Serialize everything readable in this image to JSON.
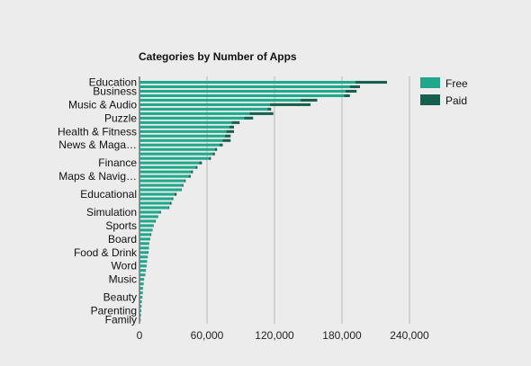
{
  "chart_data": {
    "type": "bar",
    "orientation": "horizontal",
    "stacked": true,
    "title": "Categories by Number of Apps",
    "xlabel": "",
    "ylabel": "",
    "xlim": [
      0,
      240000
    ],
    "x_ticks": [
      0,
      60000,
      120000,
      180000,
      240000
    ],
    "x_tick_labels": [
      "0",
      "60,000",
      "120,000",
      "180,000",
      "240,000"
    ],
    "grid": true,
    "legend_position": "right",
    "colors": {
      "free": "#1fa98a",
      "paid": "#17604f"
    },
    "labeled_categories": [
      "Education",
      "Business",
      "Music & Audio",
      "Puzzle",
      "Health & Fitness",
      "News & Maga…",
      "Finance",
      "Maps & Navig…",
      "Educational",
      "Simulation",
      "Sports",
      "Board",
      "Food & Drink",
      "Word",
      "Music",
      "Beauty",
      "Parenting",
      "Family"
    ],
    "categories": [
      "Education",
      "",
      "Business",
      "",
      "",
      "Music & Audio",
      "",
      "",
      "Puzzle",
      "",
      "",
      "Health & Fitness",
      "",
      "",
      "News & Maga…",
      "",
      "",
      "",
      "Finance",
      "",
      "",
      "Maps & Navig…",
      "",
      "",
      "",
      "Educational",
      "",
      "",
      "",
      "Simulation",
      "",
      "",
      "Sports",
      "",
      "",
      "Board",
      "",
      "",
      "Food & Drink",
      "",
      "",
      "Word",
      "",
      "",
      "Music",
      "",
      "",
      "",
      "Beauty",
      "",
      "",
      "Parenting",
      "",
      "Family"
    ],
    "series": [
      {
        "name": "Free",
        "values": [
          192000,
          187000,
          183000,
          182000,
          143000,
          116000,
          114000,
          98000,
          93000,
          82000,
          80000,
          77000,
          76000,
          74000,
          71000,
          67000,
          65000,
          62000,
          53000,
          50000,
          46000,
          44000,
          40000,
          38000,
          37000,
          31000,
          29000,
          27000,
          26000,
          18000,
          16000,
          14000,
          12000,
          11000,
          10000,
          9000,
          8000,
          8000,
          7500,
          7000,
          6500,
          6000,
          5500,
          5000,
          4000,
          3500,
          3000,
          2800,
          2500,
          2000,
          1800,
          1500,
          1200,
          1000
        ]
      },
      {
        "name": "Paid",
        "values": [
          28000,
          9000,
          10000,
          5000,
          15000,
          36000,
          3000,
          21000,
          8000,
          7000,
          4000,
          7000,
          5000,
          7000,
          3000,
          2000,
          2000,
          1500,
          2500,
          1500,
          1500,
          1500,
          1000,
          1000,
          500,
          2000,
          1000,
          1500,
          500,
          1000,
          500,
          500,
          500,
          500,
          500,
          500,
          500,
          300,
          500,
          300,
          200,
          200,
          200,
          200,
          100,
          200,
          100,
          100,
          100,
          100,
          100,
          100,
          100,
          100
        ]
      }
    ]
  }
}
